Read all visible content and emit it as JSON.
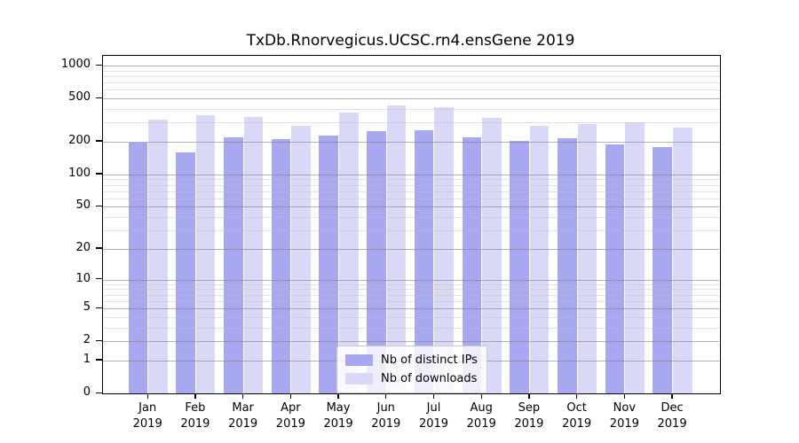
{
  "title": "TxDb.Rnorvegicus.UCSC.rn4.ensGene 2019",
  "colors": {
    "ips_bar": "#a8a8f0",
    "downloads_bar": "#d9d9f7",
    "grid_major": "#828282",
    "grid_minor": "#bebebe",
    "axis": "#000000",
    "legend_border": "#cccccc"
  },
  "legend": {
    "items": [
      {
        "label": "Nb of distinct IPs",
        "color_key": "ips_bar"
      },
      {
        "label": "Nb of downloads",
        "color_key": "downloads_bar"
      }
    ]
  },
  "chart_data": {
    "type": "bar",
    "title": "TxDb.Rnorvegicus.UCSC.rn4.ensGene 2019",
    "categories": [
      "Jan 2019",
      "Feb 2019",
      "Mar 2019",
      "Apr 2019",
      "May 2019",
      "Jun 2019",
      "Jul 2019",
      "Aug 2019",
      "Sep 2019",
      "Oct 2019",
      "Nov 2019",
      "Dec 2019"
    ],
    "series": [
      {
        "name": "Nb of distinct IPs",
        "color": "#a8a8f0",
        "values": [
          195,
          160,
          220,
          210,
          230,
          250,
          255,
          220,
          205,
          215,
          190,
          180
        ]
      },
      {
        "name": "Nb of downloads",
        "color": "#d9d9f7",
        "values": [
          320,
          350,
          335,
          280,
          370,
          435,
          415,
          330,
          280,
          290,
          300,
          270
        ]
      }
    ],
    "xlabel": "",
    "ylabel": "",
    "y_scale": "log1p",
    "y_major_ticks": [
      0,
      1,
      2,
      5,
      10,
      20,
      50,
      100,
      200,
      500,
      1000
    ],
    "y_minor_gridlines": [
      3,
      4,
      6,
      7,
      8,
      9,
      30,
      40,
      60,
      70,
      80,
      90,
      300,
      400,
      600,
      700,
      800,
      900
    ],
    "ylim": [
      0,
      1230
    ],
    "grid": true,
    "legend_position": "lower center"
  }
}
